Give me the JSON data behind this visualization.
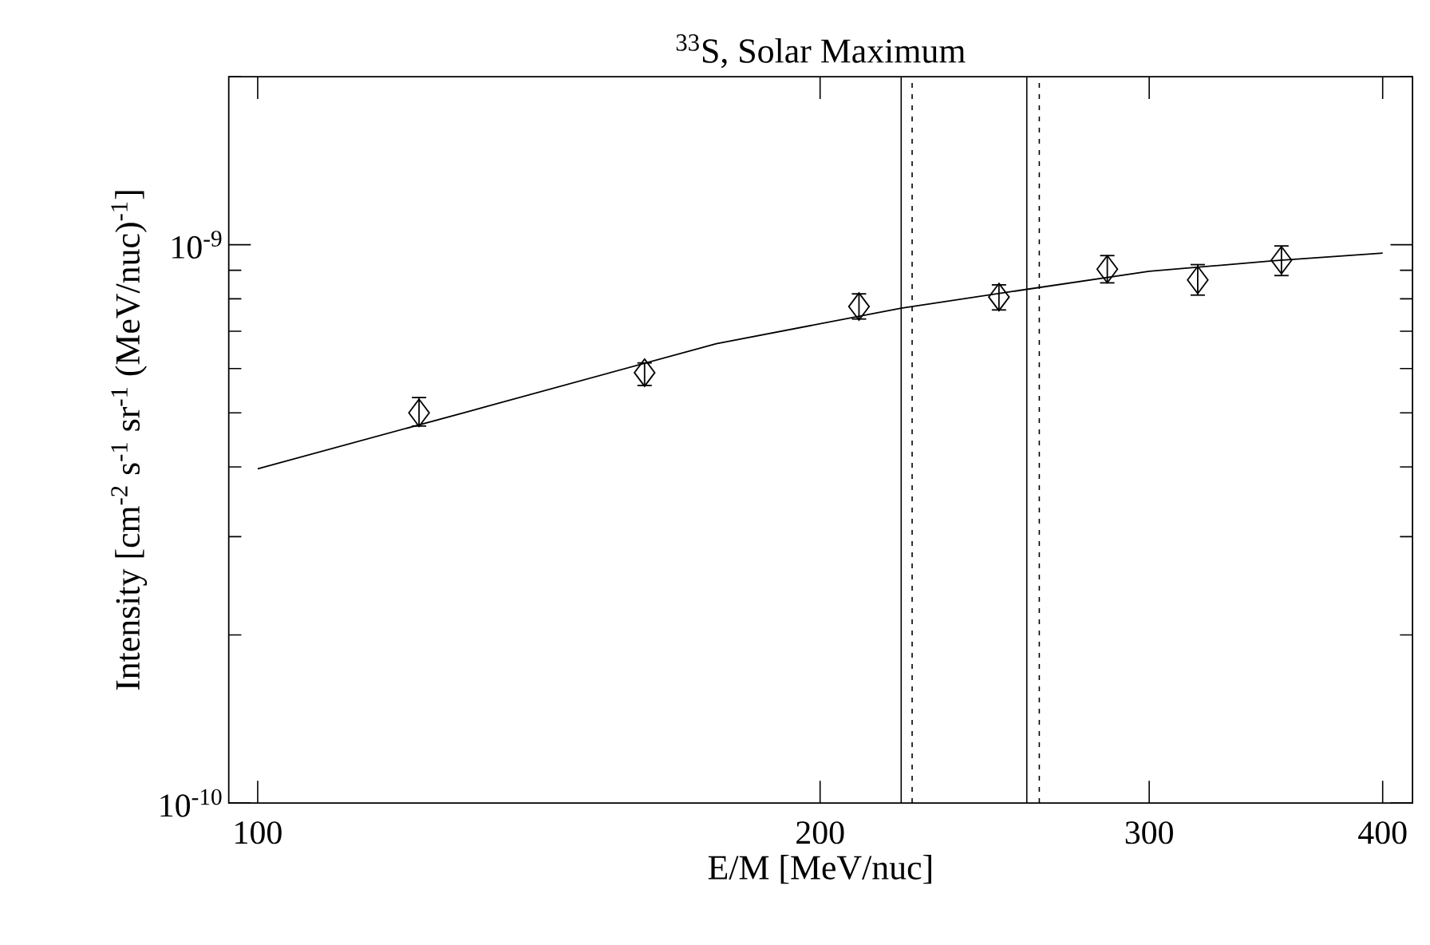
{
  "chart_data": {
    "type": "scatter",
    "title": "$^{33}$S, Solar Maximum",
    "xlabel": "E/M [MeV/nuc]",
    "ylabel": "Intensity [cm$^{-2}$ s$^{-1}$ sr$^{-1}$ (MeV/nuc)$^{-1}$]",
    "log": "xy",
    "xlim": [
      96.5,
      415
    ],
    "ylim": [
      1e-10,
      2e-09
    ],
    "xticks": [
      100,
      200,
      300,
      400
    ],
    "yticks": [
      {
        "value": 1e-10,
        "label": "10$^{-10}$"
      },
      {
        "value": 2e-10,
        "label": null
      },
      {
        "value": 3e-10,
        "label": null
      },
      {
        "value": 4e-10,
        "label": null
      },
      {
        "value": 5e-10,
        "label": null
      },
      {
        "value": 6e-10,
        "label": null
      },
      {
        "value": 7e-10,
        "label": null
      },
      {
        "value": 8e-10,
        "label": null
      },
      {
        "value": 9e-10,
        "label": null
      },
      {
        "value": 1e-09,
        "label": "10$^{-9}$"
      },
      {
        "value": 2e-09,
        "label": null
      }
    ],
    "series": [
      {
        "color": "#000000",
        "marker": "diamond",
        "x": [
          122.0,
          161.1,
          209.8,
          249.3,
          284.9,
          318.5,
          353.1
        ],
        "values": [
          5e-10,
          5.9e-10,
          7.75e-10,
          8.06e-10,
          9.04e-10,
          8.65e-10,
          9.38e-10
        ],
        "errors": [
          [
            4.72e-10,
            5.34e-10
          ],
          [
            5.58e-10,
            6.16e-10
          ],
          [
            7.34e-10,
            8.19e-10
          ],
          [
            7.62e-10,
            8.5e-10
          ],
          [
            8.52e-10,
            9.59e-10
          ],
          [
            8.1e-10,
            9.24e-10
          ],
          [
            8.78e-10,
            9.98e-10
          ]
        ]
      },
      {
        "type": "line",
        "color": "#000000",
        "marker": "none",
        "line_style": "solid",
        "x": [
          100,
          130,
          176,
          221,
          258,
          300,
          350,
          400
        ],
        "values": [
          3.97e-10,
          5.04e-10,
          6.65e-10,
          7.7e-10,
          8.32e-10,
          8.96e-10,
          9.36e-10,
          9.66e-10
        ]
      }
    ],
    "ref_lines": [
      {
        "axis": "x",
        "value": 221,
        "color": "#000000",
        "line_style": "solid"
      },
      {
        "axis": "x",
        "value": 224,
        "color": "#000000",
        "line_style": "dotted"
      },
      {
        "axis": "x",
        "value": 258,
        "color": "#000000",
        "line_style": "solid"
      },
      {
        "axis": "x",
        "value": 262,
        "color": "#000000",
        "line_style": "dotted"
      }
    ]
  }
}
